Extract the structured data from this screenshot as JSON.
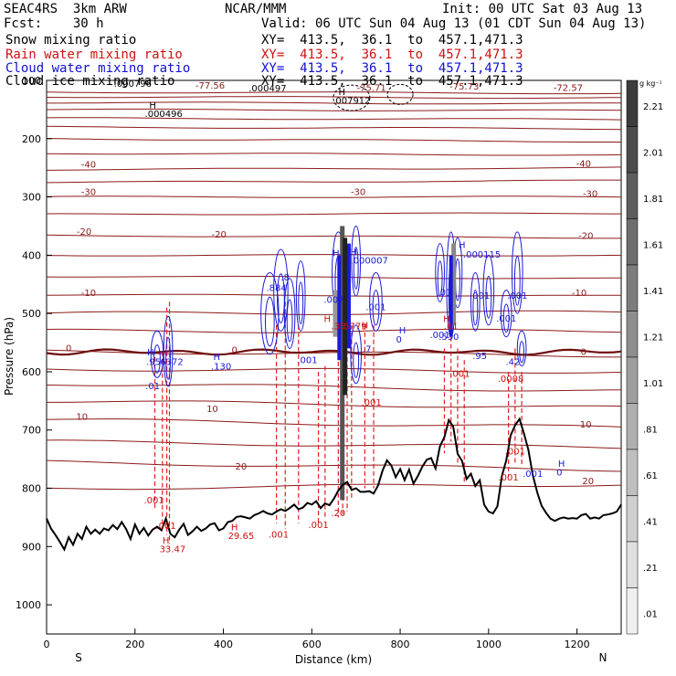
{
  "header": {
    "model": "SEAC4RS  3km ARW",
    "org": "NCAR/MMM",
    "init": "Init: 00 UTC Sat 03 Aug 13",
    "fcst": "Fcst:    30 h",
    "valid": "Valid: 06 UTC Sun 04 Aug 13 (01 CDT Sun 04 Aug 13)",
    "fields": [
      {
        "name": "Snow mixing ratio",
        "xy": "XY=  413.5,  36.1  to  457.1,471.3",
        "color": "#000000"
      },
      {
        "name": "Rain water mixing ratio",
        "xy": "XY=  413.5,  36.1  to  457.1,471.3",
        "color": "#d01010"
      },
      {
        "name": "Cloud water mixing ratio",
        "xy": "XY=  413.5,  36.1  to  457.1,471.3",
        "color": "#1010d0"
      },
      {
        "name": "Cloud ice mixing ratio",
        "xy": "XY=  413.5,  36.1  to  457.1,471.3",
        "color": "#000000"
      }
    ]
  },
  "chart_data": {
    "type": "cross-section",
    "xlabel": "Distance (km)",
    "ylabel": "Pressure (hPa)",
    "xlim": [
      0,
      1300
    ],
    "ylim": [
      100,
      1050
    ],
    "x_ticks": [
      0,
      200,
      400,
      600,
      800,
      1000,
      1200
    ],
    "y_ticks": [
      100,
      200,
      300,
      400,
      500,
      600,
      700,
      800,
      900,
      1000
    ],
    "x_end_labels": {
      "left": "S",
      "right": "N"
    },
    "colorbar": {
      "unit": "g kg⁻¹",
      "levels": [
        "2.21",
        "2.01",
        "1.81",
        "1.61",
        "1.41",
        "1.21",
        "1.01",
        ".81",
        ".61",
        ".41",
        ".21",
        ".01"
      ]
    },
    "temperature_contour_labels": [
      {
        "text": "-77.56",
        "x": 370,
        "p": 114
      },
      {
        "text": "-75.71",
        "x": 735,
        "p": 118
      },
      {
        "text": "-75.73",
        "x": 945,
        "p": 116
      },
      {
        "text": "-72.57",
        "x": 1180,
        "p": 118
      },
      {
        "text": "-40",
        "x": 95,
        "p": 250
      },
      {
        "text": "-40",
        "x": 1215,
        "p": 248
      },
      {
        "text": "-30",
        "x": 95,
        "p": 297
      },
      {
        "text": "-30",
        "x": 705,
        "p": 297
      },
      {
        "text": "-30",
        "x": 1230,
        "p": 300
      },
      {
        "text": "-20",
        "x": 85,
        "p": 365
      },
      {
        "text": "-20",
        "x": 390,
        "p": 370
      },
      {
        "text": "-20",
        "x": 1220,
        "p": 372
      },
      {
        "text": "-10",
        "x": 95,
        "p": 470
      },
      {
        "text": "-10",
        "x": 1205,
        "p": 470
      },
      {
        "text": "0",
        "x": 50,
        "p": 565
      },
      {
        "text": "0",
        "x": 425,
        "p": 568
      },
      {
        "text": "0",
        "x": 1215,
        "p": 571
      },
      {
        "text": "10",
        "x": 80,
        "p": 682
      },
      {
        "text": "10",
        "x": 375,
        "p": 669
      },
      {
        "text": "10",
        "x": 1220,
        "p": 696
      },
      {
        "text": "20",
        "x": 440,
        "p": 768
      },
      {
        "text": "20",
        "x": 1225,
        "p": 793
      }
    ],
    "snow_labels": [
      {
        "text": ".000796",
        "x": 195,
        "p": 111
      },
      {
        "text": ".000497",
        "x": 500,
        "p": 119
      },
      {
        "text": "H",
        "x": 240,
        "p": 148
      },
      {
        "text": ".000496",
        "x": 265,
        "p": 163
      },
      {
        "text": "H",
        "x": 668,
        "p": 125
      },
      {
        "text": ".007912",
        "x": 690,
        "p": 140
      }
    ],
    "rain_labels": [
      {
        "text": ".001",
        "x": 243,
        "p": 826
      },
      {
        "text": ".001",
        "x": 270,
        "p": 870
      },
      {
        "text": "H",
        "x": 270,
        "p": 895
      },
      {
        "text": "33.47",
        "x": 285,
        "p": 910
      },
      {
        "text": "H",
        "x": 425,
        "p": 872
      },
      {
        "text": "29.65",
        "x": 440,
        "p": 887
      },
      {
        "text": ".001",
        "x": 525,
        "p": 885
      },
      {
        "text": ".001",
        "x": 615,
        "p": 868
      },
      {
        "text": ".20",
        "x": 660,
        "p": 848
      },
      {
        "text": "H",
        "x": 635,
        "p": 515
      },
      {
        "text": ".35",
        "x": 660,
        "p": 527
      },
      {
        "text": ".5779",
        "x": 695,
        "p": 527
      },
      {
        "text": "H",
        "x": 720,
        "p": 526
      },
      {
        "text": ".001",
        "x": 735,
        "p": 658
      },
      {
        "text": "H",
        "x": 905,
        "p": 515
      },
      {
        "text": ".61",
        "x": 915,
        "p": 527
      },
      {
        "text": ".001",
        "x": 935,
        "p": 609
      },
      {
        "text": ".0008",
        "x": 1050,
        "p": 617
      },
      {
        "text": ".001",
        "x": 1045,
        "p": 787
      },
      {
        "text": ".001",
        "x": 1060,
        "p": 742
      }
    ],
    "cloud_labels": [
      {
        "text": "H",
        "x": 235,
        "p": 572
      },
      {
        "text": ".95",
        "x": 242,
        "p": 588
      },
      {
        "text": ".6372",
        "x": 280,
        "p": 588
      },
      {
        "text": ".01",
        "x": 240,
        "p": 630
      },
      {
        "text": "H",
        "x": 385,
        "p": 580
      },
      {
        "text": ".130",
        "x": 395,
        "p": 596
      },
      {
        "text": ".8",
        "x": 540,
        "p": 443
      },
      {
        "text": ".884",
        "x": 520,
        "p": 461
      },
      {
        "text": ".001",
        "x": 590,
        "p": 585
      },
      {
        "text": "H",
        "x": 655,
        "p": 402
      },
      {
        "text": "H",
        "x": 695,
        "p": 400
      },
      {
        "text": ".000007",
        "x": 730,
        "p": 414
      },
      {
        "text": ".007",
        "x": 650,
        "p": 482
      },
      {
        "text": ".001",
        "x": 745,
        "p": 494
      },
      {
        "text": ".7",
        "x": 725,
        "p": 566
      },
      {
        "text": "H",
        "x": 805,
        "p": 534
      },
      {
        "text": "0",
        "x": 797,
        "p": 550
      },
      {
        "text": ".001",
        "x": 890,
        "p": 542
      },
      {
        "text": ".01",
        "x": 900,
        "p": 469
      },
      {
        "text": ".530",
        "x": 910,
        "p": 545
      },
      {
        "text": "H",
        "x": 940,
        "p": 388
      },
      {
        "text": ".000115",
        "x": 985,
        "p": 404
      },
      {
        "text": ".001",
        "x": 980,
        "p": 475
      },
      {
        "text": ".001",
        "x": 1065,
        "p": 475
      },
      {
        "text": ".001",
        "x": 1040,
        "p": 514
      },
      {
        "text": ".95",
        "x": 980,
        "p": 578
      },
      {
        "text": ".42",
        "x": 1055,
        "p": 588
      },
      {
        "text": ".001",
        "x": 1100,
        "p": 780
      },
      {
        "text": "H",
        "x": 1165,
        "p": 763
      },
      {
        "text": "0",
        "x": 1160,
        "p": 778
      }
    ],
    "terrain_pressure": [
      [
        0,
        852
      ],
      [
        10,
        869
      ],
      [
        20,
        880
      ],
      [
        30,
        892
      ],
      [
        40,
        905
      ],
      [
        50,
        884
      ],
      [
        60,
        897
      ],
      [
        70,
        878
      ],
      [
        80,
        887
      ],
      [
        90,
        866
      ],
      [
        100,
        878
      ],
      [
        110,
        871
      ],
      [
        120,
        878
      ],
      [
        130,
        869
      ],
      [
        140,
        872
      ],
      [
        150,
        863
      ],
      [
        160,
        870
      ],
      [
        170,
        858
      ],
      [
        180,
        870
      ],
      [
        190,
        887
      ],
      [
        200,
        862
      ],
      [
        210,
        878
      ],
      [
        220,
        868
      ],
      [
        230,
        881
      ],
      [
        240,
        871
      ],
      [
        250,
        866
      ],
      [
        260,
        872
      ],
      [
        270,
        852
      ],
      [
        280,
        878
      ],
      [
        290,
        884
      ],
      [
        300,
        871
      ],
      [
        310,
        861
      ],
      [
        320,
        880
      ],
      [
        330,
        874
      ],
      [
        340,
        866
      ],
      [
        350,
        873
      ],
      [
        360,
        869
      ],
      [
        370,
        862
      ],
      [
        380,
        860
      ],
      [
        390,
        872
      ],
      [
        400,
        869
      ],
      [
        410,
        858
      ],
      [
        420,
        856
      ],
      [
        430,
        849
      ],
      [
        440,
        848
      ],
      [
        450,
        850
      ],
      [
        460,
        852
      ],
      [
        470,
        846
      ],
      [
        480,
        843
      ],
      [
        490,
        839
      ],
      [
        500,
        843
      ],
      [
        510,
        845
      ],
      [
        520,
        840
      ],
      [
        530,
        836
      ],
      [
        540,
        839
      ],
      [
        550,
        834
      ],
      [
        560,
        828
      ],
      [
        570,
        836
      ],
      [
        580,
        833
      ],
      [
        590,
        825
      ],
      [
        600,
        828
      ],
      [
        610,
        822
      ],
      [
        620,
        834
      ],
      [
        630,
        826
      ],
      [
        640,
        829
      ],
      [
        650,
        818
      ],
      [
        660,
        804
      ],
      [
        670,
        794
      ],
      [
        680,
        789
      ],
      [
        690,
        803
      ],
      [
        700,
        800
      ],
      [
        710,
        806
      ],
      [
        720,
        806
      ],
      [
        730,
        805
      ],
      [
        740,
        809
      ],
      [
        750,
        795
      ],
      [
        760,
        770
      ],
      [
        770,
        752
      ],
      [
        780,
        761
      ],
      [
        790,
        781
      ],
      [
        800,
        767
      ],
      [
        810,
        786
      ],
      [
        820,
        768
      ],
      [
        830,
        792
      ],
      [
        840,
        779
      ],
      [
        850,
        763
      ],
      [
        860,
        751
      ],
      [
        870,
        748
      ],
      [
        880,
        766
      ],
      [
        890,
        728
      ],
      [
        900,
        712
      ],
      [
        910,
        683
      ],
      [
        920,
        694
      ],
      [
        930,
        741
      ],
      [
        940,
        753
      ],
      [
        950,
        784
      ],
      [
        960,
        775
      ],
      [
        970,
        796
      ],
      [
        980,
        786
      ],
      [
        990,
        828
      ],
      [
        1000,
        840
      ],
      [
        1010,
        843
      ],
      [
        1020,
        831
      ],
      [
        1030,
        779
      ],
      [
        1040,
        752
      ],
      [
        1050,
        709
      ],
      [
        1060,
        692
      ],
      [
        1070,
        681
      ],
      [
        1080,
        706
      ],
      [
        1090,
        734
      ],
      [
        1100,
        777
      ],
      [
        1110,
        807
      ],
      [
        1120,
        830
      ],
      [
        1130,
        842
      ],
      [
        1140,
        852
      ],
      [
        1150,
        856
      ],
      [
        1160,
        852
      ],
      [
        1170,
        850
      ],
      [
        1180,
        852
      ],
      [
        1190,
        851
      ],
      [
        1200,
        852
      ],
      [
        1210,
        846
      ],
      [
        1220,
        844
      ],
      [
        1230,
        852
      ],
      [
        1240,
        850
      ],
      [
        1250,
        852
      ],
      [
        1260,
        846
      ],
      [
        1270,
        845
      ],
      [
        1280,
        843
      ],
      [
        1290,
        840
      ],
      [
        1300,
        828
      ]
    ],
    "temperature_lines_pressure_left": [
      120,
      128,
      138,
      150,
      165,
      180,
      200,
      225,
      253,
      275,
      300,
      330,
      366,
      400,
      436,
      468,
      500,
      530,
      565,
      595,
      620,
      650,
      682,
      720,
      755,
      800
    ],
    "temperature_lines_pressure_right": [
      122,
      130,
      140,
      152,
      167,
      183,
      205,
      228,
      250,
      272,
      300,
      328,
      370,
      400,
      440,
      470,
      498,
      530,
      572,
      600,
      633,
      662,
      696,
      730,
      768,
      793
    ]
  }
}
